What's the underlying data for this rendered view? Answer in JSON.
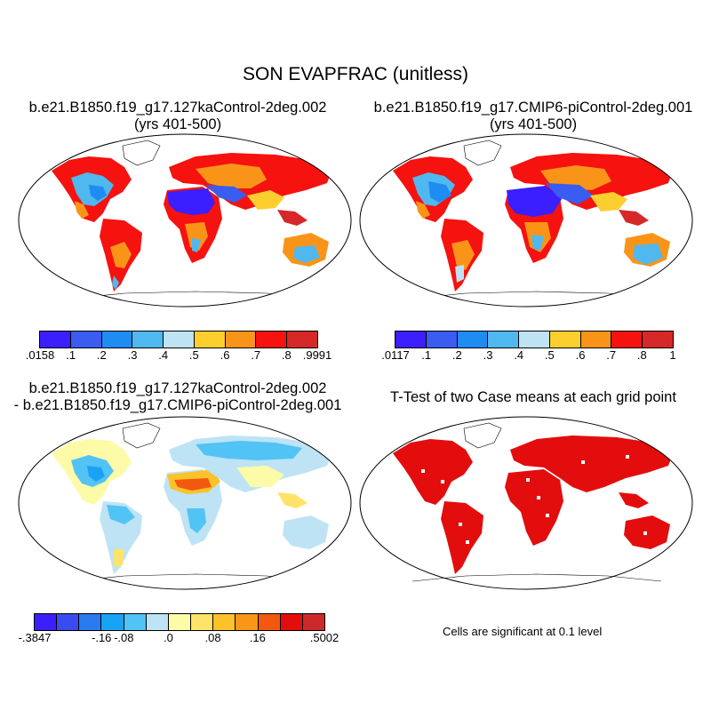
{
  "title": "SON EVAPFRAC (unitless)",
  "panels": {
    "top_left": {
      "title_line1": "b.e21.B1850.f19_g17.127kaControl-2deg.002",
      "title_line2": "(yrs 401-500)"
    },
    "top_right": {
      "title_line1": "b.e21.B1850.f19_g17.CMIP6-piControl-2deg.001",
      "title_line2": "(yrs 401-500)"
    },
    "bottom_left": {
      "title_line1": "b.e21.B1850.f19_g17.127kaControl-2deg.002",
      "title_line2": "- b.e21.B1850.f19_g17.CMIP6-piControl-2deg.001"
    },
    "bottom_right": {
      "title_line1": "T-Test of two Case means at each grid point"
    }
  },
  "colorbars": {
    "top_left": {
      "colors": [
        "#3b1fff",
        "#3a5cf0",
        "#1f8cf2",
        "#4fb8ef",
        "#bde3f5",
        "#fccf2e",
        "#fa9418",
        "#f5120f",
        "#d62828"
      ],
      "labels": [
        ".0158",
        ".1",
        ".2",
        ".3",
        ".4",
        ".5",
        ".6",
        ".7",
        ".8",
        ".9991"
      ]
    },
    "top_right": {
      "colors": [
        "#3b1fff",
        "#3a5cf0",
        "#1f8cf2",
        "#4fb8ef",
        "#bde3f5",
        "#fccf2e",
        "#fa9418",
        "#f5120f",
        "#d62828"
      ],
      "labels": [
        ".0117",
        ".1",
        ".2",
        ".3",
        ".4",
        ".5",
        ".6",
        ".7",
        ".8",
        "1"
      ]
    },
    "bottom_left": {
      "colors": [
        "#3b1fff",
        "#3a4cf0",
        "#2a7af0",
        "#1aa2f5",
        "#52c3f5",
        "#bde3f5",
        "#fdfba8",
        "#fde36a",
        "#fcc229",
        "#f99618",
        "#f2580f",
        "#e30d0d",
        "#cc2a2a"
      ],
      "labels": [
        "-.3847",
        "-.16",
        "-.08",
        ".0",
        ".08",
        ".16",
        ".5002"
      ]
    }
  },
  "significance_note": "Cells are significant at 0.1 level"
}
